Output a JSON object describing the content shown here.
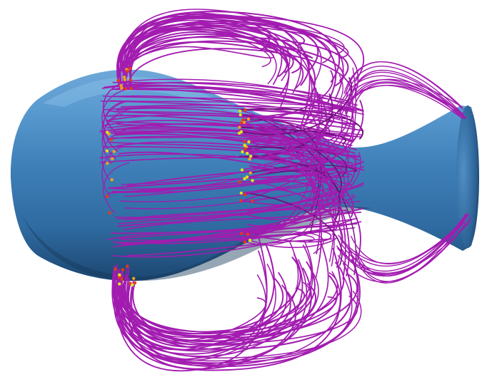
{
  "scene": {
    "background_color": "#ffffff",
    "body_colors": {
      "highlight": "#7fb3dc",
      "base": "#4a8cc2",
      "mid": "#3a77ad",
      "shadow": "#1f4d78",
      "edge": "#163a5c"
    },
    "streamline_color": "#a21cb0",
    "streamline_dark": "#6e0f7a",
    "seed_colors": [
      "#d9e81a",
      "#e23a1a",
      "#f0a21c"
    ],
    "object": "axisymmetric-body",
    "feature": "streamlines"
  }
}
